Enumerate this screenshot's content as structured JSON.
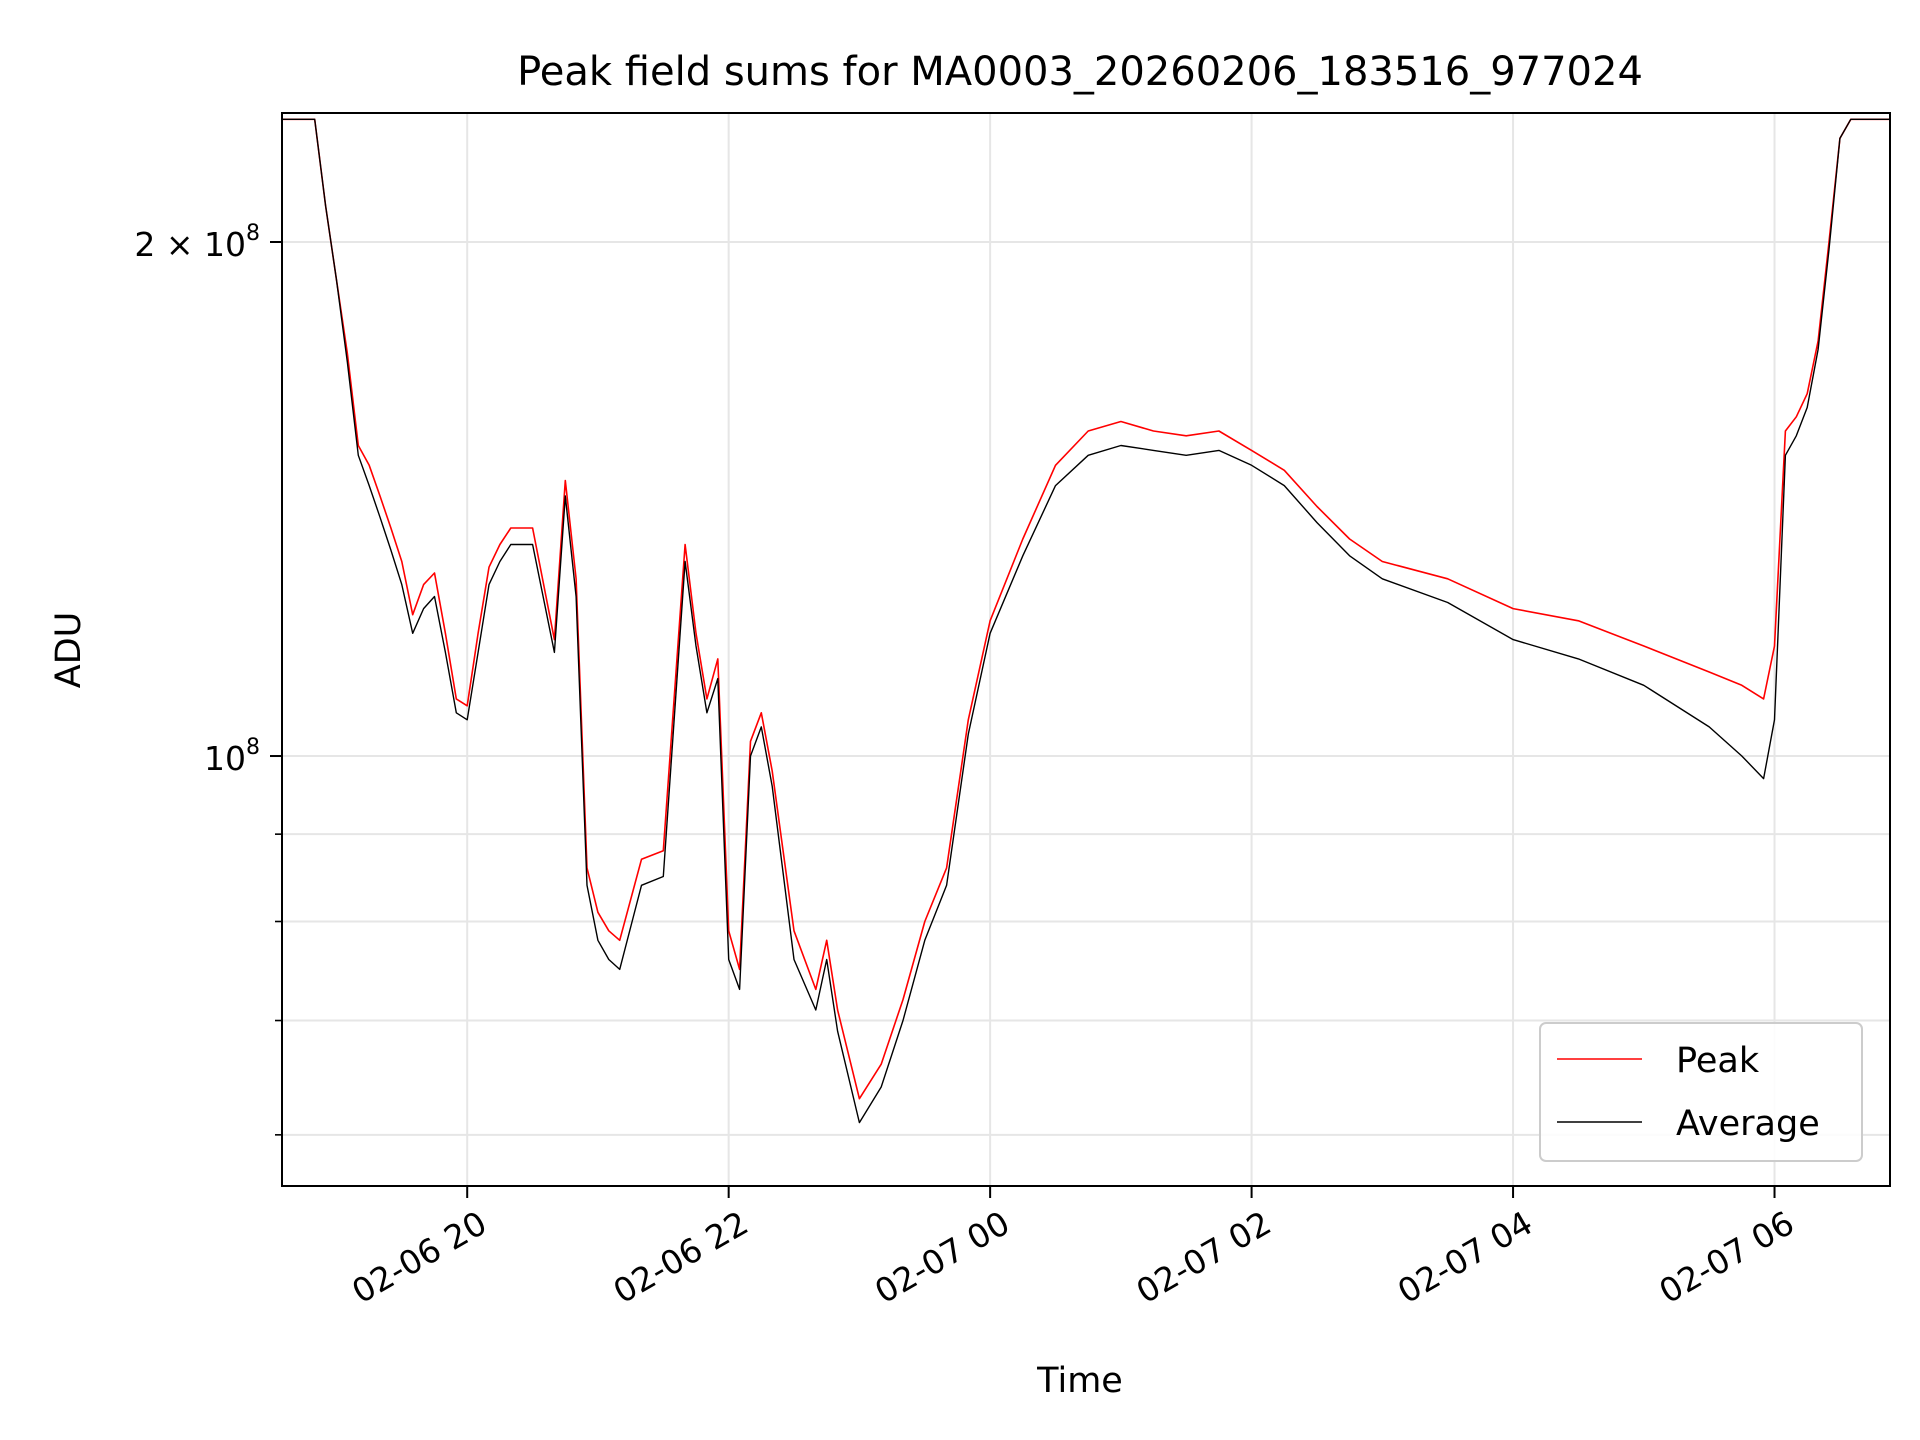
{
  "chart_data": {
    "type": "line",
    "title": "Peak field sums for MA0003_20260206_183516_977024",
    "xlabel": "Time",
    "ylabel": "ADU",
    "y_scale": "log",
    "ylim": [
      56000000,
      238000000
    ],
    "xlim": [
      "2026-02-06 18:35",
      "2026-02-07 06:53"
    ],
    "grid": true,
    "legend": {
      "placement": "lower-right"
    },
    "x_ticks": [
      {
        "t": "2026-02-06 20:00",
        "label": "02-06 20"
      },
      {
        "t": "2026-02-06 22:00",
        "label": "02-06 22"
      },
      {
        "t": "2026-02-07 00:00",
        "label": "02-07 00"
      },
      {
        "t": "2026-02-07 02:00",
        "label": "02-07 02"
      },
      {
        "t": "2026-02-07 04:00",
        "label": "02-07 04"
      },
      {
        "t": "2026-02-07 06:00",
        "label": "02-07 06"
      }
    ],
    "y_major_ticks": [
      {
        "v": 100000000,
        "base": "10",
        "exp": "8",
        "coef": ""
      },
      {
        "v": 200000000,
        "base": "10",
        "exp": "8",
        "coef": "2 × "
      }
    ],
    "y_minor_ticks": [
      60000000,
      70000000,
      80000000,
      90000000
    ],
    "series": [
      {
        "name": "Peak",
        "color": "#ff0000",
        "x": [
          "2026-02-06 18:35",
          "2026-02-06 18:50",
          "2026-02-06 18:55",
          "2026-02-06 19:00",
          "2026-02-06 19:05",
          "2026-02-06 19:10",
          "2026-02-06 19:15",
          "2026-02-06 19:20",
          "2026-02-06 19:25",
          "2026-02-06 19:30",
          "2026-02-06 19:35",
          "2026-02-06 19:40",
          "2026-02-06 19:45",
          "2026-02-06 19:50",
          "2026-02-06 19:55",
          "2026-02-06 20:00",
          "2026-02-06 20:05",
          "2026-02-06 20:10",
          "2026-02-06 20:15",
          "2026-02-06 20:20",
          "2026-02-06 20:30",
          "2026-02-06 20:40",
          "2026-02-06 20:45",
          "2026-02-06 20:50",
          "2026-02-06 20:55",
          "2026-02-06 21:00",
          "2026-02-06 21:05",
          "2026-02-06 21:10",
          "2026-02-06 21:20",
          "2026-02-06 21:30",
          "2026-02-06 21:40",
          "2026-02-06 21:45",
          "2026-02-06 21:50",
          "2026-02-06 21:55",
          "2026-02-06 22:00",
          "2026-02-06 22:05",
          "2026-02-06 22:10",
          "2026-02-06 22:15",
          "2026-02-06 22:20",
          "2026-02-06 22:30",
          "2026-02-06 22:40",
          "2026-02-06 22:45",
          "2026-02-06 22:50",
          "2026-02-06 23:00",
          "2026-02-06 23:10",
          "2026-02-06 23:20",
          "2026-02-06 23:30",
          "2026-02-06 23:40",
          "2026-02-06 23:50",
          "2026-02-07 00:00",
          "2026-02-07 00:15",
          "2026-02-07 00:30",
          "2026-02-07 00:45",
          "2026-02-07 01:00",
          "2026-02-07 01:15",
          "2026-02-07 01:30",
          "2026-02-07 01:45",
          "2026-02-07 02:00",
          "2026-02-07 02:15",
          "2026-02-07 02:30",
          "2026-02-07 02:45",
          "2026-02-07 03:00",
          "2026-02-07 03:30",
          "2026-02-07 04:00",
          "2026-02-07 04:30",
          "2026-02-07 05:00",
          "2026-02-07 05:30",
          "2026-02-07 05:45",
          "2026-02-07 05:55",
          "2026-02-07 06:00",
          "2026-02-07 06:05",
          "2026-02-07 06:10",
          "2026-02-07 06:15",
          "2026-02-07 06:20",
          "2026-02-07 06:25",
          "2026-02-07 06:30",
          "2026-02-07 06:35",
          "2026-02-07 06:53"
        ],
        "values": [
          236000000,
          236000000,
          210000000,
          190000000,
          172000000,
          152000000,
          148000000,
          142000000,
          136000000,
          130000000,
          121000000,
          126000000,
          128000000,
          118000000,
          108000000,
          107000000,
          118000000,
          129000000,
          133000000,
          136000000,
          136000000,
          117000000,
          145000000,
          127000000,
          86000000,
          81000000,
          79000000,
          78000000,
          87000000,
          88000000,
          133000000,
          118000000,
          108000000,
          114000000,
          79000000,
          75000000,
          102000000,
          106000000,
          98000000,
          79000000,
          73000000,
          78000000,
          71000000,
          63000000,
          66000000,
          72000000,
          80000000,
          86000000,
          105000000,
          120000000,
          134000000,
          148000000,
          155000000,
          157000000,
          155000000,
          154000000,
          155000000,
          151000000,
          147000000,
          140000000,
          134000000,
          130000000,
          127000000,
          122000000,
          120000000,
          116000000,
          112000000,
          110000000,
          108000000,
          116000000,
          155000000,
          158000000,
          163000000,
          175000000,
          200000000,
          230000000,
          236000000,
          236000000
        ]
      },
      {
        "name": "Average",
        "color": "#000000",
        "x": [
          "2026-02-06 18:35",
          "2026-02-06 18:50",
          "2026-02-06 18:55",
          "2026-02-06 19:00",
          "2026-02-06 19:05",
          "2026-02-06 19:10",
          "2026-02-06 19:15",
          "2026-02-06 19:20",
          "2026-02-06 19:25",
          "2026-02-06 19:30",
          "2026-02-06 19:35",
          "2026-02-06 19:40",
          "2026-02-06 19:45",
          "2026-02-06 19:50",
          "2026-02-06 19:55",
          "2026-02-06 20:00",
          "2026-02-06 20:05",
          "2026-02-06 20:10",
          "2026-02-06 20:15",
          "2026-02-06 20:20",
          "2026-02-06 20:30",
          "2026-02-06 20:40",
          "2026-02-06 20:45",
          "2026-02-06 20:50",
          "2026-02-06 20:55",
          "2026-02-06 21:00",
          "2026-02-06 21:05",
          "2026-02-06 21:10",
          "2026-02-06 21:20",
          "2026-02-06 21:30",
          "2026-02-06 21:40",
          "2026-02-06 21:45",
          "2026-02-06 21:50",
          "2026-02-06 21:55",
          "2026-02-06 22:00",
          "2026-02-06 22:05",
          "2026-02-06 22:10",
          "2026-02-06 22:15",
          "2026-02-06 22:20",
          "2026-02-06 22:30",
          "2026-02-06 22:40",
          "2026-02-06 22:45",
          "2026-02-06 22:50",
          "2026-02-06 23:00",
          "2026-02-06 23:10",
          "2026-02-06 23:20",
          "2026-02-06 23:30",
          "2026-02-06 23:40",
          "2026-02-06 23:50",
          "2026-02-07 00:00",
          "2026-02-07 00:15",
          "2026-02-07 00:30",
          "2026-02-07 00:45",
          "2026-02-07 01:00",
          "2026-02-07 01:15",
          "2026-02-07 01:30",
          "2026-02-07 01:45",
          "2026-02-07 02:00",
          "2026-02-07 02:15",
          "2026-02-07 02:30",
          "2026-02-07 02:45",
          "2026-02-07 03:00",
          "2026-02-07 03:30",
          "2026-02-07 04:00",
          "2026-02-07 04:30",
          "2026-02-07 05:00",
          "2026-02-07 05:30",
          "2026-02-07 05:45",
          "2026-02-07 05:55",
          "2026-02-07 06:00",
          "2026-02-07 06:05",
          "2026-02-07 06:10",
          "2026-02-07 06:15",
          "2026-02-07 06:20",
          "2026-02-07 06:25",
          "2026-02-07 06:30",
          "2026-02-07 06:35",
          "2026-02-07 06:53"
        ],
        "values": [
          236000000,
          236000000,
          210000000,
          190000000,
          170000000,
          150000000,
          144000000,
          138000000,
          132000000,
          126000000,
          118000000,
          122000000,
          124000000,
          115000000,
          106000000,
          105000000,
          115000000,
          126000000,
          130000000,
          133000000,
          133000000,
          115000000,
          142000000,
          124000000,
          84000000,
          78000000,
          76000000,
          75000000,
          84000000,
          85000000,
          130000000,
          116000000,
          106000000,
          111000000,
          76000000,
          73000000,
          100000000,
          104000000,
          96000000,
          76000000,
          71000000,
          76000000,
          69000000,
          61000000,
          64000000,
          70000000,
          78000000,
          84000000,
          103000000,
          118000000,
          131000000,
          144000000,
          150000000,
          152000000,
          151000000,
          150000000,
          151000000,
          148000000,
          144000000,
          137000000,
          131000000,
          127000000,
          123000000,
          117000000,
          114000000,
          110000000,
          104000000,
          100000000,
          97000000,
          105000000,
          150000000,
          154000000,
          160000000,
          173000000,
          198000000,
          230000000,
          236000000,
          236000000
        ]
      }
    ]
  }
}
